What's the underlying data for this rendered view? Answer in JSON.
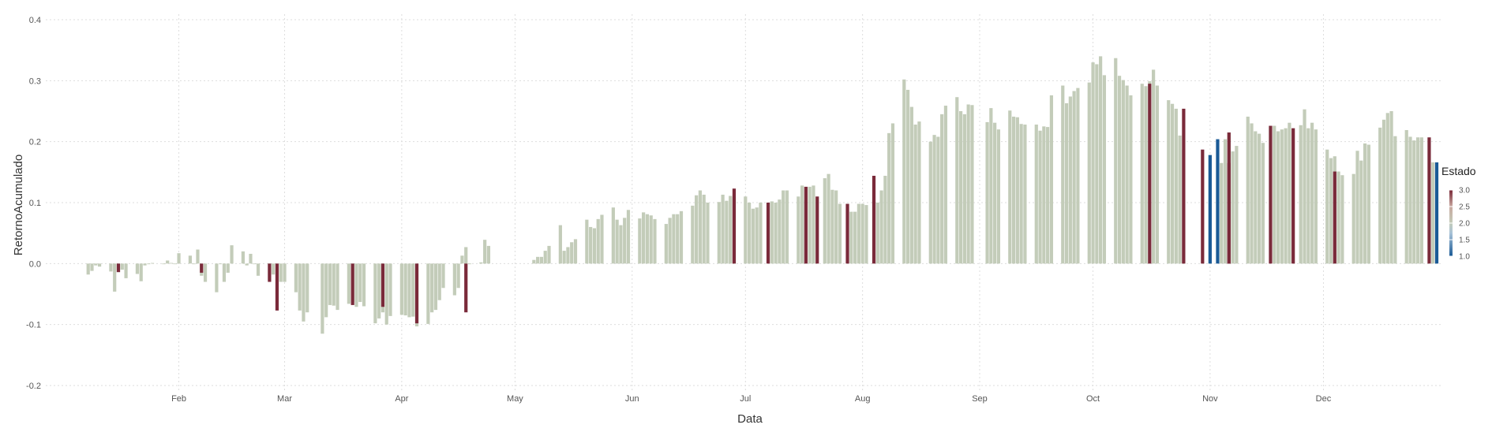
{
  "chart_data": {
    "type": "bar",
    "title": "",
    "xlabel": "Data",
    "ylabel": "RetornoAcumulado",
    "ylim": [
      -0.2,
      0.4
    ],
    "yticks": [
      "-0.2",
      "-0.1",
      "0.0",
      "0.1",
      "0.2",
      "0.3",
      "0.4"
    ],
    "xlim": [
      "2019-01-02",
      "2019-12-31"
    ],
    "x_ticks": [
      {
        "date": "2019-02-01",
        "label": "Feb"
      },
      {
        "date": "2019-03-01",
        "label": "Mar"
      },
      {
        "date": "2019-04-01",
        "label": "Apr"
      },
      {
        "date": "2019-05-01",
        "label": "May"
      },
      {
        "date": "2019-06-01",
        "label": "Jun"
      },
      {
        "date": "2019-07-01",
        "label": "Jul"
      },
      {
        "date": "2019-08-01",
        "label": "Aug"
      },
      {
        "date": "2019-09-01",
        "label": "Sep"
      },
      {
        "date": "2019-10-01",
        "label": "Oct"
      },
      {
        "date": "2019-11-01",
        "label": "Nov"
      },
      {
        "date": "2019-12-01",
        "label": "Dec"
      }
    ],
    "grid": true,
    "legend": {
      "title": "Estado",
      "position": "right",
      "type": "colorbar",
      "range": [
        1.0,
        3.0
      ],
      "ticks": [
        "1.0",
        "1.5",
        "2.0",
        "2.5",
        "3.0"
      ],
      "colors": {
        "1.0": "#1a5a96",
        "2.0": "#c3ccb9",
        "3.0": "#7a2a3a"
      }
    },
    "segments": [
      {
        "start": "2019-01-08",
        "end": "2019-03-07",
        "values": [
          -0.018,
          -0.012,
          -0.003,
          -0.005,
          -0.013,
          -0.046,
          -0.014,
          -0.01,
          -0.024,
          -0.017,
          -0.029,
          -0.003,
          -0.001,
          0.001,
          -0.001,
          0.005,
          0.001,
          -0.001,
          0.017,
          0.013,
          -0.001,
          0.023,
          -0.02,
          -0.03,
          -0.047,
          -0.001,
          -0.03,
          -0.015,
          0.03,
          0.02,
          -0.003,
          0.016,
          0.0,
          -0.02,
          -0.027,
          -0.018,
          -0.001,
          -0.03,
          -0.03,
          -0.047,
          -0.077,
          -0.095,
          -0.08,
          -0.065,
          -0.09,
          -0.082,
          -0.07,
          -0.099,
          -0.098
        ]
      },
      {
        "start": "2019-03-11",
        "end": "2019-04-30",
        "values": [
          -0.115,
          -0.088,
          -0.068,
          -0.069,
          -0.076,
          -0.066,
          -0.063,
          -0.071,
          -0.063,
          -0.07,
          -0.098,
          -0.09,
          -0.08,
          -0.1,
          -0.086,
          -0.084,
          -0.085,
          -0.088,
          -0.087,
          -0.103,
          -0.099,
          -0.08,
          -0.076,
          -0.06,
          -0.04,
          -0.052,
          -0.04,
          0.013,
          0.027,
          -0.001,
          0.002,
          0.039,
          0.029
        ]
      },
      {
        "start": "2019-05-06",
        "end": "2019-06-28",
        "values": [
          0.006,
          0.011,
          0.011,
          0.021,
          0.029,
          0.063,
          0.021,
          0.027,
          0.035,
          0.04,
          0.072,
          0.06,
          0.058,
          0.073,
          0.08,
          0.092,
          0.072,
          0.063,
          0.075,
          0.088,
          0.074,
          0.084,
          0.081,
          0.079,
          0.073,
          0.065,
          0.075,
          0.081,
          0.081,
          0.086,
          0.095,
          0.112,
          0.12,
          0.113,
          0.1,
          0.101,
          0.113,
          0.103,
          0.111,
          0.109,
          0.11,
          0.116,
          0.12,
          0.113,
          0.111,
          0.113,
          0.114,
          0.13,
          0.125,
          0.123
        ]
      },
      {
        "start": "2019-07-01",
        "end": "2019-08-30",
        "values": [
          0.11,
          0.1,
          0.09,
          0.092,
          0.1,
          0.102,
          0.1,
          0.105,
          0.12,
          0.12,
          0.11,
          0.128,
          0.104,
          0.126,
          0.128,
          0.14,
          0.147,
          0.121,
          0.12,
          0.098,
          0.085,
          0.085,
          0.098,
          0.098,
          0.096,
          0.1,
          0.12,
          0.144,
          0.214,
          0.23,
          0.302,
          0.285,
          0.257,
          0.228,
          0.233,
          0.2,
          0.211,
          0.208,
          0.245,
          0.259,
          0.273,
          0.25,
          0.245,
          0.261,
          0.26,
          0.23,
          0.229,
          0.215,
          0.205
        ]
      },
      {
        "start": "2019-09-03",
        "end": "2019-10-31",
        "values": [
          0.232,
          0.255,
          0.231,
          0.22,
          0.251,
          0.241,
          0.24,
          0.229,
          0.228,
          0.228,
          0.218,
          0.225,
          0.224,
          0.276,
          0.292,
          0.263,
          0.274,
          0.283,
          0.288,
          0.297,
          0.33,
          0.327,
          0.34,
          0.309,
          0.337,
          0.308,
          0.301,
          0.292,
          0.276,
          0.295,
          0.291,
          0.299,
          0.318,
          0.292,
          0.268,
          0.262,
          0.254,
          0.21,
          0.187
        ]
      },
      {
        "start": "2019-11-01",
        "end": "2019-12-31",
        "values": [
          0.178,
          0.165,
          0.204,
          0.215,
          0.184,
          0.193,
          0.241,
          0.23,
          0.217,
          0.213,
          0.198,
          0.226,
          0.217,
          0.22,
          0.222,
          0.231,
          0.227,
          0.253,
          0.222,
          0.231,
          0.22,
          0.187,
          0.173,
          0.176,
          0.151,
          0.145,
          0.147,
          0.185,
          0.169,
          0.197,
          0.195,
          0.223,
          0.236,
          0.247,
          0.25,
          0.209,
          0.219,
          0.208,
          0.202,
          0.207,
          0.207,
          0.166
        ]
      }
    ],
    "state3_bars": [
      {
        "date": "2019-01-16",
        "value": -0.014
      },
      {
        "date": "2019-02-07",
        "value": -0.015
      },
      {
        "date": "2019-02-25",
        "value": -0.03
      },
      {
        "date": "2019-02-27",
        "value": -0.077
      },
      {
        "date": "2019-03-19",
        "value": -0.068
      },
      {
        "date": "2019-03-27",
        "value": -0.071
      },
      {
        "date": "2019-04-05",
        "value": -0.098
      },
      {
        "date": "2019-04-18",
        "value": -0.08
      },
      {
        "date": "2019-06-28",
        "value": 0.123
      },
      {
        "date": "2019-07-07",
        "value": 0.1
      },
      {
        "date": "2019-07-20",
        "value": 0.11
      },
      {
        "date": "2019-07-17",
        "value": 0.126
      },
      {
        "date": "2019-07-28",
        "value": 0.098
      },
      {
        "date": "2019-08-04",
        "value": 0.144
      },
      {
        "date": "2019-10-16",
        "value": 0.295
      },
      {
        "date": "2019-10-25",
        "value": 0.254
      },
      {
        "date": "2019-10-30",
        "value": 0.187
      },
      {
        "date": "2019-11-06",
        "value": 0.165
      },
      {
        "date": "2019-11-06",
        "value": 0.215
      },
      {
        "date": "2019-11-17",
        "value": 0.226
      },
      {
        "date": "2019-11-23",
        "value": 0.222
      },
      {
        "date": "2019-12-04",
        "value": 0.151
      },
      {
        "date": "2019-12-29",
        "value": 0.207
      }
    ],
    "state1_bars": [
      {
        "date": "2019-11-01",
        "value": 0.178
      },
      {
        "date": "2019-11-03",
        "value": 0.204
      },
      {
        "date": "2019-12-31",
        "value": 0.166
      }
    ]
  }
}
